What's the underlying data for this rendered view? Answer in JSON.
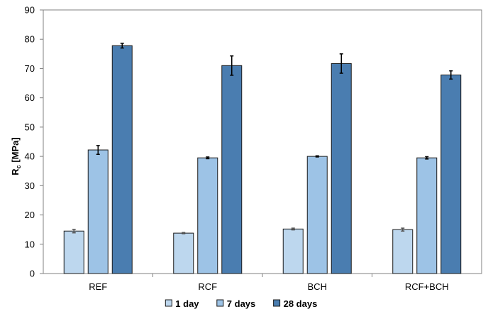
{
  "chart_data": {
    "type": "bar",
    "categories": [
      "REF",
      "RCF",
      "BCH",
      "RCF+BCH"
    ],
    "series": [
      {
        "name": "1 day",
        "values": [
          14.5,
          13.8,
          15.2,
          15.0
        ],
        "errors": [
          0.6,
          0.2,
          0.3,
          0.5
        ],
        "color": "#bdd7ee"
      },
      {
        "name": "7 days",
        "values": [
          42.2,
          39.5,
          40.0,
          39.5
        ],
        "errors": [
          1.5,
          0.3,
          0.2,
          0.4
        ],
        "color": "#9dc3e6"
      },
      {
        "name": "28 days",
        "values": [
          77.8,
          71.0,
          71.7,
          67.8
        ],
        "errors": [
          0.8,
          3.3,
          3.3,
          1.4
        ],
        "color": "#4a7db0"
      }
    ],
    "ylabel_main": "R",
    "ylabel_sub": "c",
    "ylabel_unit": " [MPa]",
    "xlabel": "",
    "ylim": [
      0,
      90
    ],
    "yticks": [
      0,
      10,
      20,
      30,
      40,
      50,
      60,
      70,
      80,
      90
    ],
    "grid": false,
    "error_bars": true,
    "legend_position": "bottom-center"
  }
}
